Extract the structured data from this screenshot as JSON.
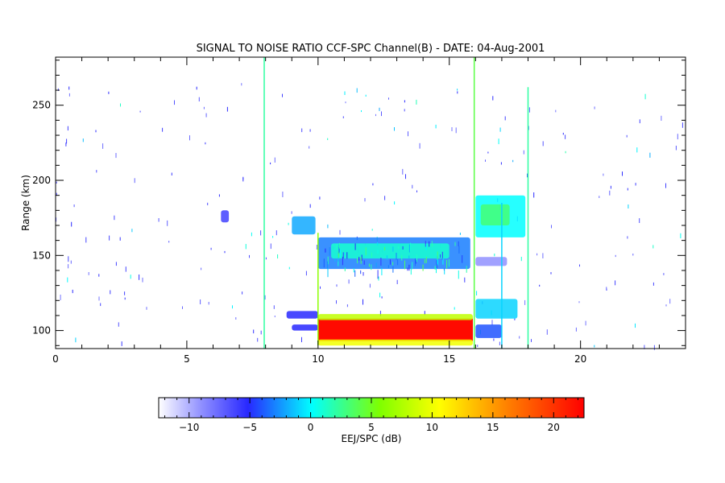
{
  "chart_data": {
    "type": "heatmap",
    "title": "SIGNAL TO NOISE RATIO CCF-SPC Channel(B) - DATE: 04-Aug-2001",
    "xlabel": "",
    "ylabel": "Range (km)",
    "xlim": [
      0,
      24
    ],
    "ylim": [
      88,
      282
    ],
    "xticks": [
      0,
      5,
      10,
      15,
      20
    ],
    "yticks": [
      100,
      150,
      200,
      250
    ],
    "grid": false,
    "colorbar": {
      "label": "EEJ/SPC (dB)",
      "range": [
        -12.5,
        22.5
      ],
      "ticks": [
        -10,
        -5,
        0,
        5,
        10,
        15,
        20
      ],
      "colors": [
        "#ffffff",
        "#6060ff",
        "#2828ff",
        "#00ffff",
        "#7fff00",
        "#ffff00",
        "#ff8000",
        "#ff0000"
      ]
    },
    "regions": [
      {
        "name": "eej-saturated",
        "x": [
          10.0,
          15.9
        ],
        "y": [
          93,
          108
        ],
        "snr_db": 22
      },
      {
        "name": "eej-lower-band",
        "x": [
          10.0,
          15.9
        ],
        "y": [
          90,
          94
        ],
        "snr_db": 10
      },
      {
        "name": "eej-upper-edge",
        "x": [
          10.0,
          15.9
        ],
        "y": [
          107,
          111
        ],
        "snr_db": 8
      },
      {
        "name": "echo-150",
        "x": [
          10.0,
          15.8
        ],
        "y": [
          141,
          162
        ],
        "snr_db": -3
      },
      {
        "name": "echo-150-core",
        "x": [
          10.5,
          15.0
        ],
        "y": [
          148,
          158
        ],
        "snr_db": 1
      },
      {
        "name": "echo-170-left",
        "x": [
          9.0,
          9.9
        ],
        "y": [
          164,
          176
        ],
        "snr_db": -2
      },
      {
        "name": "echo-175-right",
        "x": [
          16.0,
          17.9
        ],
        "y": [
          162,
          190
        ],
        "snr_db": 0
      },
      {
        "name": "echo-175-right-core",
        "x": [
          16.2,
          17.3
        ],
        "y": [
          170,
          184
        ],
        "snr_db": 3
      },
      {
        "name": "echo-115-right",
        "x": [
          16.0,
          17.6
        ],
        "y": [
          108,
          121
        ],
        "snr_db": -1
      },
      {
        "name": "echo-110-left",
        "x": [
          8.8,
          10.0
        ],
        "y": [
          108,
          113
        ],
        "snr_db": -5
      },
      {
        "name": "echo-100-left",
        "x": [
          9.0,
          10.0
        ],
        "y": [
          100,
          104
        ],
        "snr_db": -5
      },
      {
        "name": "echo-100-right",
        "x": [
          16.0,
          17.0
        ],
        "y": [
          95,
          104
        ],
        "snr_db": -4
      },
      {
        "name": "echo-145-right",
        "x": [
          16.0,
          17.2
        ],
        "y": [
          143,
          149
        ],
        "snr_db": -9
      },
      {
        "name": "echo-175-small",
        "x": [
          6.3,
          6.6
        ],
        "y": [
          172,
          180
        ],
        "snr_db": -6
      }
    ],
    "vertical_lines": [
      {
        "x": 7.95,
        "y": [
          88,
          282
        ],
        "snr_db": 2
      },
      {
        "x": 10.0,
        "y": [
          90,
          165
        ],
        "snr_db": 6
      },
      {
        "x": 15.95,
        "y": [
          88,
          282
        ],
        "snr_db": 4
      },
      {
        "x": 17.0,
        "y": [
          88,
          185
        ],
        "snr_db": -1
      },
      {
        "x": 18.0,
        "y": [
          88,
          262
        ],
        "snr_db": 2
      }
    ]
  }
}
